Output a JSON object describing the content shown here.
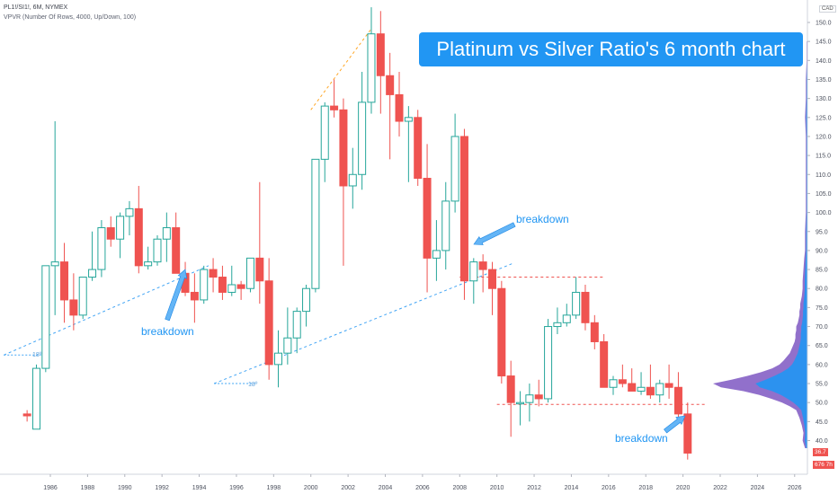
{
  "header": {
    "symbol_line": "PL1!/SI1!, 6M, NYMEX",
    "indicator_line": "VPVR (Number Of Rows, 4000, Up/Down, 100)"
  },
  "title_box": "Platinum vs Silver Ratio's 6 month chart",
  "annotations": {
    "breakdown_1": "breakdown",
    "breakdown_2": "breakdown",
    "breakdown_3": "breakdown",
    "angle_1": "18º",
    "angle_2": "18º"
  },
  "price_scale": {
    "currency": "CAD",
    "last_price_tag": "36.7",
    "low_tag": "676 7h"
  },
  "colors": {
    "up": "#26a69a",
    "down": "#ef5350",
    "accent": "#2196f3",
    "profile_up": "#2196f3",
    "profile_down": "#7e57c2"
  },
  "chart_data": {
    "type": "candlestick",
    "title": "Platinum vs Silver Ratio's 6 month chart",
    "series_name": "PL1!/SI1!",
    "interval": "6M",
    "x_ticks": [
      "1986",
      "1988",
      "1990",
      "1992",
      "1994",
      "1996",
      "1998",
      "2000",
      "2002",
      "2004",
      "2006",
      "2008",
      "2010",
      "2012",
      "2014",
      "2016",
      "2018",
      "2020",
      "2022",
      "2024",
      "2026"
    ],
    "y_ticks": [
      "40.0",
      "45.0",
      "50.0",
      "55.0",
      "60.0",
      "65.0",
      "70.0",
      "75.0",
      "80.0",
      "85.0",
      "90.0",
      "95.0",
      "100.0",
      "105.0",
      "110.0",
      "115.0",
      "120.0",
      "125.0",
      "130.0",
      "135.0",
      "140.0",
      "145.0",
      "150.0"
    ],
    "ylim": [
      34,
      155
    ],
    "xlim": [
      1984,
      2027
    ],
    "candles": [
      {
        "t": 1984.75,
        "o": 47,
        "h": 48,
        "l": 45,
        "c": 46.5
      },
      {
        "t": 1985.25,
        "o": 43,
        "h": 60,
        "l": 43,
        "c": 59
      },
      {
        "t": 1985.75,
        "o": 59,
        "h": 86,
        "l": 58,
        "c": 86
      },
      {
        "t": 1986.25,
        "o": 86,
        "h": 124,
        "l": 73,
        "c": 87
      },
      {
        "t": 1986.75,
        "o": 87,
        "h": 92,
        "l": 71,
        "c": 77
      },
      {
        "t": 1987.25,
        "o": 77,
        "h": 84,
        "l": 69,
        "c": 73
      },
      {
        "t": 1987.75,
        "o": 73,
        "h": 83,
        "l": 72,
        "c": 83
      },
      {
        "t": 1988.25,
        "o": 83,
        "h": 95,
        "l": 82,
        "c": 85
      },
      {
        "t": 1988.75,
        "o": 85,
        "h": 98,
        "l": 83,
        "c": 96
      },
      {
        "t": 1989.25,
        "o": 96,
        "h": 99,
        "l": 91,
        "c": 93
      },
      {
        "t": 1989.75,
        "o": 93,
        "h": 100,
        "l": 88,
        "c": 99
      },
      {
        "t": 1990.25,
        "o": 99,
        "h": 103,
        "l": 94,
        "c": 101
      },
      {
        "t": 1990.75,
        "o": 101,
        "h": 107,
        "l": 84,
        "c": 86
      },
      {
        "t": 1991.25,
        "o": 86,
        "h": 91,
        "l": 85,
        "c": 87
      },
      {
        "t": 1991.75,
        "o": 87,
        "h": 94,
        "l": 86,
        "c": 93
      },
      {
        "t": 1992.25,
        "o": 93,
        "h": 100,
        "l": 87,
        "c": 96
      },
      {
        "t": 1992.75,
        "o": 96,
        "h": 100,
        "l": 84,
        "c": 84
      },
      {
        "t": 1993.25,
        "o": 84,
        "h": 87,
        "l": 78,
        "c": 79
      },
      {
        "t": 1993.75,
        "o": 79,
        "h": 84,
        "l": 71,
        "c": 77
      },
      {
        "t": 1994.25,
        "o": 77,
        "h": 86,
        "l": 76,
        "c": 85
      },
      {
        "t": 1994.75,
        "o": 85,
        "h": 88,
        "l": 79,
        "c": 83
      },
      {
        "t": 1995.25,
        "o": 83,
        "h": 86,
        "l": 77,
        "c": 79
      },
      {
        "t": 1995.75,
        "o": 79,
        "h": 86,
        "l": 78,
        "c": 81
      },
      {
        "t": 1996.25,
        "o": 81,
        "h": 82,
        "l": 77,
        "c": 80
      },
      {
        "t": 1996.75,
        "o": 80,
        "h": 88,
        "l": 79,
        "c": 88
      },
      {
        "t": 1997.25,
        "o": 88,
        "h": 108,
        "l": 76,
        "c": 82
      },
      {
        "t": 1997.75,
        "o": 82,
        "h": 88,
        "l": 56,
        "c": 60
      },
      {
        "t": 1998.25,
        "o": 60,
        "h": 69,
        "l": 54,
        "c": 63
      },
      {
        "t": 1998.75,
        "o": 63,
        "h": 75,
        "l": 60,
        "c": 67
      },
      {
        "t": 1999.25,
        "o": 67,
        "h": 75,
        "l": 63,
        "c": 74
      },
      {
        "t": 1999.75,
        "o": 74,
        "h": 81,
        "l": 70,
        "c": 80
      },
      {
        "t": 2000.25,
        "o": 80,
        "h": 113,
        "l": 79,
        "c": 114
      },
      {
        "t": 2000.75,
        "o": 114,
        "h": 129,
        "l": 108,
        "c": 128
      },
      {
        "t": 2001.25,
        "o": 128,
        "h": 135,
        "l": 125,
        "c": 127
      },
      {
        "t": 2001.75,
        "o": 127,
        "h": 130,
        "l": 86,
        "c": 107
      },
      {
        "t": 2002.25,
        "o": 107,
        "h": 117,
        "l": 101,
        "c": 110
      },
      {
        "t": 2002.75,
        "o": 110,
        "h": 137,
        "l": 106,
        "c": 129
      },
      {
        "t": 2003.25,
        "o": 129,
        "h": 154,
        "l": 126,
        "c": 147
      },
      {
        "t": 2003.75,
        "o": 147,
        "h": 153,
        "l": 126,
        "c": 136
      },
      {
        "t": 2004.25,
        "o": 136,
        "h": 142,
        "l": 114,
        "c": 131
      },
      {
        "t": 2004.75,
        "o": 131,
        "h": 137,
        "l": 120,
        "c": 124
      },
      {
        "t": 2005.25,
        "o": 124,
        "h": 128,
        "l": 108,
        "c": 125
      },
      {
        "t": 2005.75,
        "o": 125,
        "h": 127,
        "l": 107,
        "c": 109
      },
      {
        "t": 2006.25,
        "o": 109,
        "h": 118,
        "l": 79,
        "c": 88
      },
      {
        "t": 2006.75,
        "o": 88,
        "h": 98,
        "l": 82,
        "c": 90
      },
      {
        "t": 2007.25,
        "o": 90,
        "h": 108,
        "l": 85,
        "c": 103
      },
      {
        "t": 2007.75,
        "o": 103,
        "h": 126,
        "l": 100,
        "c": 120
      },
      {
        "t": 2008.25,
        "o": 120,
        "h": 122,
        "l": 77,
        "c": 82
      },
      {
        "t": 2008.75,
        "o": 82,
        "h": 88,
        "l": 76,
        "c": 87
      },
      {
        "t": 2009.25,
        "o": 87,
        "h": 89,
        "l": 79,
        "c": 85
      },
      {
        "t": 2009.75,
        "o": 85,
        "h": 87,
        "l": 73,
        "c": 80
      },
      {
        "t": 2010.25,
        "o": 80,
        "h": 82,
        "l": 55,
        "c": 57
      },
      {
        "t": 2010.75,
        "o": 57,
        "h": 61,
        "l": 41,
        "c": 50
      },
      {
        "t": 2011.25,
        "o": 50,
        "h": 53,
        "l": 44,
        "c": 50
      },
      {
        "t": 2011.75,
        "o": 50,
        "h": 55,
        "l": 45,
        "c": 52
      },
      {
        "t": 2012.25,
        "o": 52,
        "h": 56,
        "l": 49,
        "c": 51
      },
      {
        "t": 2012.75,
        "o": 51,
        "h": 72,
        "l": 50,
        "c": 70
      },
      {
        "t": 2013.25,
        "o": 70,
        "h": 75,
        "l": 68,
        "c": 71
      },
      {
        "t": 2013.75,
        "o": 71,
        "h": 76,
        "l": 70,
        "c": 73
      },
      {
        "t": 2014.25,
        "o": 73,
        "h": 83,
        "l": 72,
        "c": 79
      },
      {
        "t": 2014.75,
        "o": 79,
        "h": 81,
        "l": 69,
        "c": 71
      },
      {
        "t": 2015.25,
        "o": 71,
        "h": 73,
        "l": 64,
        "c": 66
      },
      {
        "t": 2015.75,
        "o": 66,
        "h": 68,
        "l": 54,
        "c": 54
      },
      {
        "t": 2016.25,
        "o": 54,
        "h": 57,
        "l": 52,
        "c": 56
      },
      {
        "t": 2016.75,
        "o": 56,
        "h": 60,
        "l": 54,
        "c": 55
      },
      {
        "t": 2017.25,
        "o": 55,
        "h": 59,
        "l": 53,
        "c": 53
      },
      {
        "t": 2017.75,
        "o": 53,
        "h": 58,
        "l": 52,
        "c": 54
      },
      {
        "t": 2018.25,
        "o": 54,
        "h": 60,
        "l": 51,
        "c": 52
      },
      {
        "t": 2018.75,
        "o": 52,
        "h": 56,
        "l": 50,
        "c": 55
      },
      {
        "t": 2019.25,
        "o": 55,
        "h": 60,
        "l": 51,
        "c": 54
      },
      {
        "t": 2019.75,
        "o": 54,
        "h": 58,
        "l": 46,
        "c": 47
      },
      {
        "t": 2020.25,
        "o": 47,
        "h": 50,
        "l": 35,
        "c": 36.7
      }
    ],
    "trendlines": [
      {
        "name": "support-1",
        "x1": 1983.5,
        "y1": 62.5,
        "x2": 1994.5,
        "y2": 86
      },
      {
        "name": "support-2",
        "x1": 1994.8,
        "y1": 55,
        "x2": 2010.8,
        "y2": 86.5
      },
      {
        "name": "early-rise",
        "x1": 2000.0,
        "y1": 127,
        "x2": 2003.2,
        "y2": 148
      }
    ],
    "horizontal_levels": [
      {
        "name": "level-83",
        "y": 83,
        "x1": 2008.0,
        "x2": 2015.7
      },
      {
        "name": "level-49.5",
        "y": 49.5,
        "x1": 2010.0,
        "x2": 2021.3
      }
    ],
    "angle_lines": [
      {
        "name": "angle-1",
        "x1": 1983.5,
        "x2": 1985.5,
        "y": 62.5
      },
      {
        "name": "angle-2",
        "x1": 1994.8,
        "x2": 1997.0,
        "y": 55
      }
    ],
    "volume_profile": [
      [
        38,
        3
      ],
      [
        40,
        6
      ],
      [
        42,
        5
      ],
      [
        44,
        7
      ],
      [
        46,
        10
      ],
      [
        48,
        14
      ],
      [
        49,
        22
      ],
      [
        50,
        32
      ],
      [
        51,
        45
      ],
      [
        52,
        60
      ],
      [
        53,
        80
      ],
      [
        54,
        108
      ],
      [
        55,
        118
      ],
      [
        56,
        95
      ],
      [
        57,
        75
      ],
      [
        58,
        58
      ],
      [
        59,
        44
      ],
      [
        60,
        35
      ],
      [
        61,
        30
      ],
      [
        62,
        26
      ],
      [
        63,
        22
      ],
      [
        64,
        20
      ],
      [
        65,
        18
      ],
      [
        66,
        16
      ],
      [
        67,
        15
      ],
      [
        68,
        15
      ],
      [
        69,
        14
      ],
      [
        70,
        14
      ],
      [
        71,
        12
      ],
      [
        72,
        11
      ],
      [
        73,
        10
      ],
      [
        74,
        10
      ],
      [
        75,
        9
      ],
      [
        76,
        9
      ],
      [
        77,
        8
      ],
      [
        78,
        7
      ],
      [
        80,
        6
      ],
      [
        82,
        6
      ],
      [
        85,
        5
      ],
      [
        88,
        4
      ],
      [
        90,
        3
      ],
      [
        95,
        3
      ],
      [
        100,
        2
      ],
      [
        105,
        2
      ],
      [
        110,
        2
      ],
      [
        115,
        2
      ],
      [
        120,
        2
      ],
      [
        125,
        3
      ],
      [
        130,
        2
      ],
      [
        135,
        2
      ],
      [
        140,
        1
      ],
      [
        145,
        1
      ]
    ]
  }
}
